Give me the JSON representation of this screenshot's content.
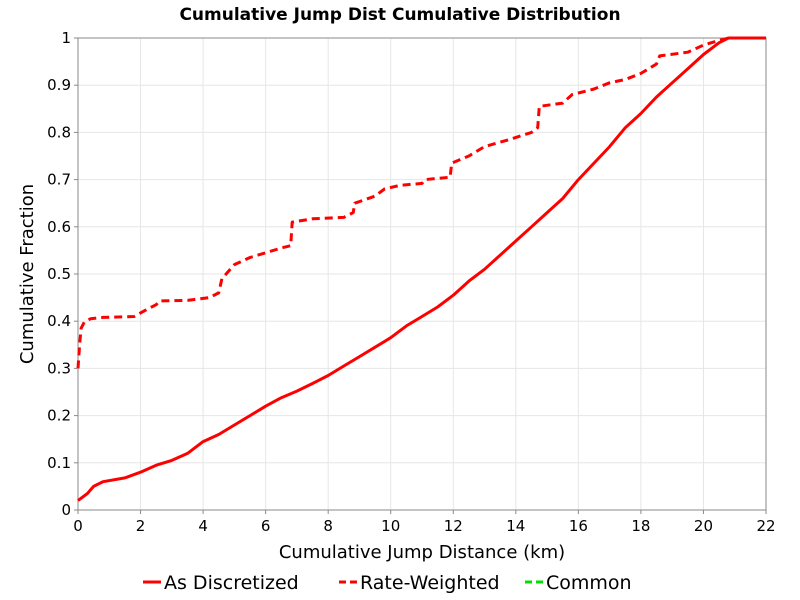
{
  "chart_data": {
    "type": "line",
    "title": "Cumulative Jump Dist Cumulative Distribution",
    "xlabel": "Cumulative Jump Distance (km)",
    "ylabel": "Cumulative Fraction",
    "xlim": [
      0,
      22
    ],
    "ylim": [
      0,
      1
    ],
    "xticks": [
      "0",
      "2",
      "4",
      "6",
      "8",
      "10",
      "12",
      "14",
      "16",
      "18",
      "20",
      "22"
    ],
    "yticks": [
      "0",
      "0.1",
      "0.2",
      "0.3",
      "0.4",
      "0.5",
      "0.6",
      "0.7",
      "0.8",
      "0.9",
      "1"
    ],
    "grid": true,
    "legend_position": "bottom",
    "series": [
      {
        "name": "As Discretized",
        "color": "#ff0000",
        "style": "solid",
        "x": [
          0,
          0.3,
          0.5,
          0.8,
          1.5,
          2.0,
          2.5,
          3.0,
          3.5,
          4.0,
          4.5,
          5.0,
          5.5,
          6.0,
          6.5,
          7.0,
          7.5,
          8.0,
          8.5,
          9.0,
          9.5,
          10.0,
          10.5,
          11.0,
          11.5,
          12.0,
          12.5,
          13.0,
          13.5,
          14.0,
          14.5,
          15.0,
          15.5,
          16.0,
          16.5,
          17.0,
          17.5,
          18.0,
          18.5,
          19.0,
          19.5,
          20.0,
          20.5,
          20.8,
          21.5,
          22.0
        ],
        "y": [
          0.02,
          0.035,
          0.05,
          0.06,
          0.068,
          0.08,
          0.095,
          0.105,
          0.12,
          0.145,
          0.16,
          0.18,
          0.2,
          0.22,
          0.238,
          0.252,
          0.268,
          0.285,
          0.305,
          0.325,
          0.345,
          0.365,
          0.39,
          0.41,
          0.43,
          0.455,
          0.485,
          0.51,
          0.54,
          0.57,
          0.6,
          0.63,
          0.66,
          0.7,
          0.735,
          0.77,
          0.81,
          0.84,
          0.875,
          0.905,
          0.935,
          0.965,
          0.99,
          1.0,
          1.0,
          1.0
        ]
      },
      {
        "name": "Rate-Weighted",
        "color": "#ff0000",
        "style": "dashed",
        "x": [
          0,
          0.05,
          0.1,
          0.2,
          0.4,
          0.8,
          1.8,
          2.2,
          2.5,
          2.6,
          3.5,
          4.2,
          4.5,
          4.6,
          5.0,
          5.5,
          6.0,
          6.5,
          6.8,
          6.85,
          7.5,
          8.5,
          8.8,
          8.85,
          9.5,
          9.8,
          10.3,
          11.0,
          11.1,
          11.9,
          11.95,
          12.5,
          13.0,
          13.8,
          14.5,
          14.7,
          14.75,
          15.5,
          15.8,
          16.5,
          17.0,
          17.5,
          18.0,
          18.5,
          18.6,
          19.5,
          20.0,
          20.5,
          20.8,
          22.0
        ],
        "y": [
          0.3,
          0.35,
          0.385,
          0.398,
          0.405,
          0.408,
          0.41,
          0.425,
          0.435,
          0.443,
          0.444,
          0.45,
          0.46,
          0.49,
          0.52,
          0.535,
          0.545,
          0.555,
          0.56,
          0.61,
          0.617,
          0.62,
          0.63,
          0.65,
          0.665,
          0.68,
          0.688,
          0.692,
          0.7,
          0.705,
          0.735,
          0.75,
          0.77,
          0.785,
          0.8,
          0.81,
          0.855,
          0.862,
          0.88,
          0.892,
          0.905,
          0.912,
          0.925,
          0.945,
          0.962,
          0.97,
          0.985,
          0.995,
          1.0,
          1.0
        ]
      },
      {
        "name": "Common",
        "color": "#00e000",
        "style": "dashed",
        "x": [],
        "y": []
      }
    ]
  }
}
